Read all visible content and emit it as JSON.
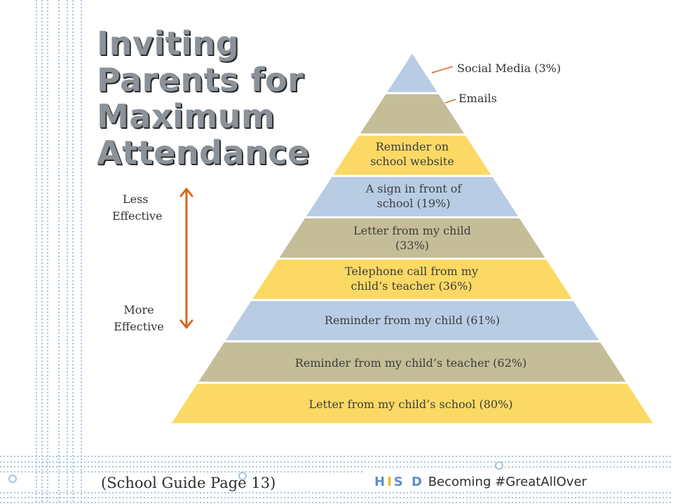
{
  "title": {
    "line1": "Inviting",
    "line2": "Parents for",
    "line3": "Maximum",
    "line4": "Attendance"
  },
  "scale": {
    "top_label_line1": "Less",
    "top_label_line2": "Effective",
    "bottom_label_line1": "More",
    "bottom_label_line2": "Effective",
    "arrow_color": "#d9641e"
  },
  "pyramid": {
    "levels": [
      {
        "line1": "",
        "line2": "",
        "color": "#b8cce4"
      },
      {
        "line1": "",
        "line2": "",
        "color": "#c4bd97"
      },
      {
        "line1": "Reminder on",
        "line2": "school website",
        "color": "#fcd965"
      },
      {
        "line1": "A sign in front of",
        "line2": "school (19%)",
        "color": "#b8cce4"
      },
      {
        "line1": "Letter from my child",
        "line2": "(33%)",
        "color": "#c4bd97"
      },
      {
        "line1": "Telephone call from my",
        "line2": "child’s teacher (36%)",
        "color": "#fcd965"
      },
      {
        "line1": "Reminder from my child (61%)",
        "line2": "",
        "color": "#b8cce4"
      },
      {
        "line1": "Reminder from my child’s teacher (62%)",
        "line2": "",
        "color": "#c4bd97"
      },
      {
        "line1": "Letter from my child’s school (80%)",
        "line2": "",
        "color": "#fcd965"
      }
    ],
    "callouts": {
      "top": "Social Media (3%)",
      "second": "Emails",
      "line_color": "#d9641e"
    }
  },
  "footer": {
    "reference": "(School Guide Page 13)",
    "logo_h": "H",
    "logo_i": "I",
    "logo_sd": "S D",
    "tagline": "Becoming #GreatAllOver"
  },
  "colors": {
    "accent_blue": "#5a8fc9",
    "accent_gold": "#f2b51d",
    "stripe_blue": "#a9c4dc"
  },
  "icons": {
    "double_arrow": "double-headed-arrow-icon"
  }
}
